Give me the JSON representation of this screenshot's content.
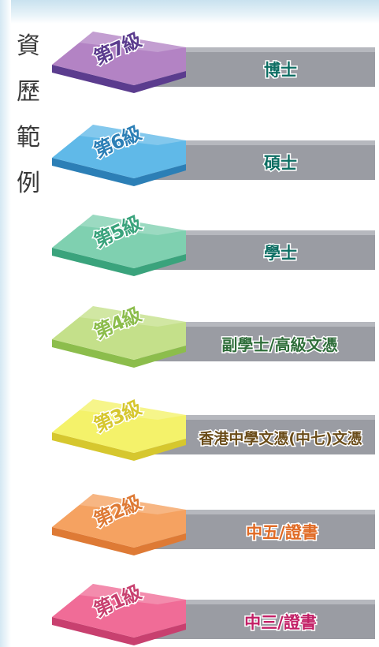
{
  "title_chars": [
    "資",
    "歷",
    "範",
    "例"
  ],
  "levels": [
    {
      "level_label": "第7級",
      "qualification": "博士",
      "color": "#b383c4",
      "dark": "#5b3c8e",
      "text_color": "#0d6e63"
    },
    {
      "level_label": "第6級",
      "qualification": "碩士",
      "color": "#60b9e8",
      "dark": "#2c7fb6",
      "text_color": "#0d6e63"
    },
    {
      "level_label": "第5級",
      "qualification": "學士",
      "color": "#7fd0b0",
      "dark": "#3aa37c",
      "text_color": "#0d6e63"
    },
    {
      "level_label": "第4級",
      "qualification": "副學士/高級文憑",
      "color": "#c4e08a",
      "dark": "#8cbd4c",
      "text_color": "#2f6e3a"
    },
    {
      "level_label": "第3級",
      "qualification": "香港中學文憑(中七)文憑",
      "color": "#f4f26a",
      "dark": "#d6c72e",
      "text_color": "#6b4d1a"
    },
    {
      "level_label": "第2級",
      "qualification": "中五/證書",
      "color": "#f5a261",
      "dark": "#de7a35",
      "text_color": "#e06a24"
    },
    {
      "level_label": "第1級",
      "qualification": "中三/證書",
      "color": "#f06c97",
      "dark": "#c8406f",
      "text_color": "#c21f66"
    }
  ]
}
